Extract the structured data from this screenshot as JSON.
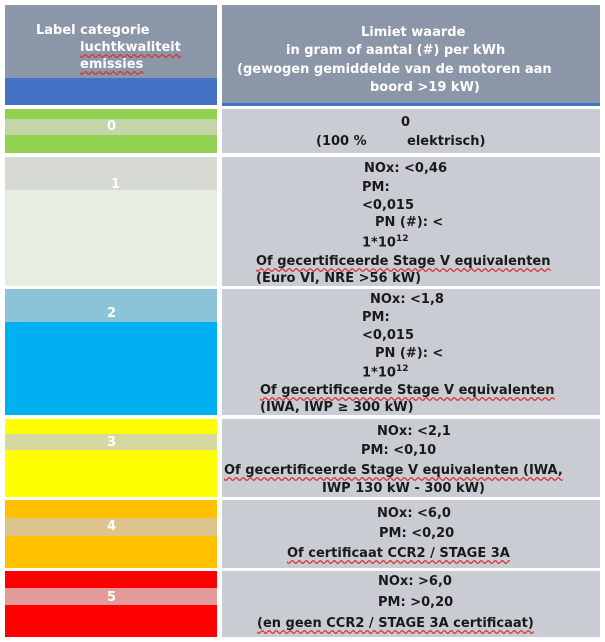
{
  "header": {
    "left_lines": [
      "Label categorie",
      "luchtkwaliteit",
      "emissies"
    ],
    "right_lines": [
      "Limiet waarde",
      "in gram of aantal (#) per kWh",
      "(gewogen gemiddelde van de motoren aan",
      "boord >19 kW)"
    ]
  },
  "rows": [
    {
      "label": "0",
      "colors": [
        "#92d050",
        "#c4d6a8",
        "#92d050"
      ],
      "lines": [
        "0",
        "(100 %",
        "elektrisch)"
      ]
    },
    {
      "label": "1",
      "colors": [
        "#d6d9d2",
        "#e6efdf"
      ],
      "lines": [
        "NOx: <0,46",
        "PM:",
        "<0,015",
        "PN (#): <",
        "1*10",
        "12",
        "Of gecertificeerde Stage V equivalenten",
        "(Euro VI, NRE >56 kW)"
      ]
    },
    {
      "label": "2",
      "colors": [
        "#8bc4d8",
        "#00b0f0"
      ],
      "lines": [
        "NOx: <1,8",
        "PM:",
        "<0,015",
        "PN (#): <",
        "1*10",
        "12",
        "Of gecertificeerde Stage V equivalenten",
        "(IWA, IWP ≥ 300 kW)"
      ]
    },
    {
      "label": "3",
      "colors": [
        "#ffff00",
        "#d7d8a0",
        "#ffff00"
      ],
      "lines": [
        "NOx: <2,1",
        "PM: <0,10",
        "Of gecertificeerde Stage V equivalenten (IWA,",
        "IWP 130 kW - 300 kW)"
      ]
    },
    {
      "label": "4",
      "colors": [
        "#ffc000",
        "#ddc48c",
        "#ffc000"
      ],
      "lines": [
        "NOx: <6,0",
        "PM: <0,20",
        "Of certificaat CCR2 / STAGE 3A"
      ]
    },
    {
      "label": "5",
      "colors": [
        "#ff0000",
        "#e39a9a",
        "#ff0000"
      ],
      "lines": [
        "NOx: >6,0",
        "PM: >0,20",
        "(en geen CCR2 / STAGE 3A certificaat)"
      ]
    }
  ]
}
